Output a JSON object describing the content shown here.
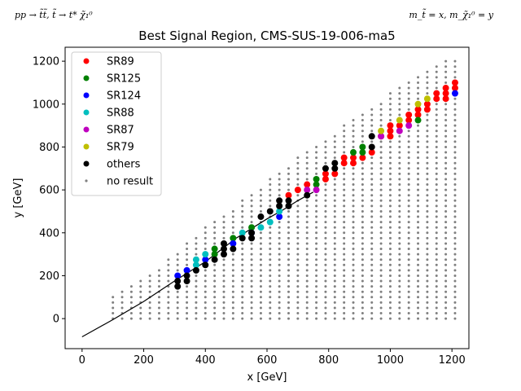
{
  "chart_data": {
    "type": "scatter",
    "title": "Best Signal Region, CMS-SUS-19-006-ma5",
    "top_left_label": "pp → t̃t̃, t̃ → t* χ̃₁⁰",
    "top_right_label": "m_t̃ = x, m_χ̃₁⁰ = y",
    "xlabel": "x [GeV]",
    "ylabel": "y [GeV]",
    "xlim": [
      -55,
      1255
    ],
    "ylim": [
      -140,
      1265
    ],
    "xticks": [
      0,
      200,
      400,
      600,
      800,
      1000,
      1200
    ],
    "yticks": [
      0,
      200,
      400,
      600,
      800,
      1000,
      1200
    ],
    "grid": false,
    "legend_placement": "upper left",
    "series": [
      {
        "name": "SR89",
        "color": "#ff0000",
        "marker": "dot",
        "points": [
          [
            670,
            575
          ],
          [
            700,
            600
          ],
          [
            730,
            625
          ],
          [
            790,
            650
          ],
          [
            790,
            675
          ],
          [
            820,
            675
          ],
          [
            850,
            725
          ],
          [
            850,
            750
          ],
          [
            880,
            725
          ],
          [
            880,
            750
          ],
          [
            910,
            750
          ],
          [
            940,
            775
          ],
          [
            970,
            850
          ],
          [
            1000,
            850
          ],
          [
            1000,
            875
          ],
          [
            1000,
            900
          ],
          [
            1030,
            900
          ],
          [
            1060,
            925
          ],
          [
            1060,
            950
          ],
          [
            1090,
            950
          ],
          [
            1090,
            975
          ],
          [
            1120,
            975
          ],
          [
            1120,
            1000
          ],
          [
            1150,
            1025
          ],
          [
            1150,
            1050
          ],
          [
            1180,
            1025
          ],
          [
            1180,
            1050
          ],
          [
            1180,
            1075
          ],
          [
            1210,
            1075
          ],
          [
            1210,
            1100
          ]
        ]
      },
      {
        "name": "SR125",
        "color": "#008000",
        "marker": "dot",
        "points": [
          [
            430,
            300
          ],
          [
            430,
            325
          ],
          [
            490,
            375
          ],
          [
            550,
            425
          ],
          [
            760,
            625
          ],
          [
            760,
            650
          ],
          [
            880,
            775
          ],
          [
            910,
            775
          ],
          [
            910,
            800
          ],
          [
            1090,
            925
          ]
        ]
      },
      {
        "name": "SR124",
        "color": "#0000ff",
        "marker": "dot",
        "points": [
          [
            310,
            200
          ],
          [
            340,
            225
          ],
          [
            400,
            275
          ],
          [
            490,
            350
          ],
          [
            550,
            400
          ],
          [
            640,
            475
          ],
          [
            1210,
            1050
          ]
        ]
      },
      {
        "name": "SR88",
        "color": "#00bfbf",
        "marker": "dot",
        "points": [
          [
            370,
            250
          ],
          [
            370,
            275
          ],
          [
            400,
            300
          ],
          [
            520,
            400
          ],
          [
            580,
            425
          ],
          [
            610,
            450
          ],
          [
            640,
            500
          ]
        ]
      },
      {
        "name": "SR87",
        "color": "#bf00bf",
        "marker": "dot",
        "points": [
          [
            730,
            600
          ],
          [
            760,
            600
          ],
          [
            970,
            850
          ],
          [
            1030,
            875
          ],
          [
            1060,
            900
          ]
        ]
      },
      {
        "name": "SR79",
        "color": "#bfbf00",
        "marker": "dot",
        "points": [
          [
            970,
            875
          ],
          [
            1030,
            925
          ],
          [
            1090,
            1000
          ],
          [
            1120,
            1025
          ]
        ]
      },
      {
        "name": "others",
        "color": "#000000",
        "marker": "dot",
        "points": [
          [
            310,
            150
          ],
          [
            310,
            175
          ],
          [
            340,
            175
          ],
          [
            340,
            200
          ],
          [
            370,
            225
          ],
          [
            400,
            250
          ],
          [
            430,
            275
          ],
          [
            460,
            300
          ],
          [
            460,
            325
          ],
          [
            460,
            350
          ],
          [
            490,
            325
          ],
          [
            520,
            375
          ],
          [
            550,
            375
          ],
          [
            550,
            400
          ],
          [
            580,
            475
          ],
          [
            610,
            500
          ],
          [
            640,
            525
          ],
          [
            640,
            550
          ],
          [
            670,
            525
          ],
          [
            670,
            550
          ],
          [
            730,
            575
          ],
          [
            790,
            700
          ],
          [
            820,
            700
          ],
          [
            820,
            725
          ],
          [
            940,
            800
          ],
          [
            940,
            850
          ]
        ]
      },
      {
        "name": "no result",
        "color": "#808080",
        "marker": "small-dot",
        "points": "grid fill between the diagonal edge and y = 0 for x from 100 to 1210"
      }
    ],
    "curve": {
      "description": "black reference line",
      "color": "#000000",
      "points": [
        [
          0,
          -85
        ],
        [
          100,
          -5
        ],
        [
          200,
          80
        ],
        [
          300,
          175
        ],
        [
          400,
          265
        ],
        [
          500,
          375
        ],
        [
          600,
          465
        ],
        [
          650,
          505
        ],
        [
          700,
          550
        ],
        [
          750,
          590
        ]
      ]
    }
  }
}
